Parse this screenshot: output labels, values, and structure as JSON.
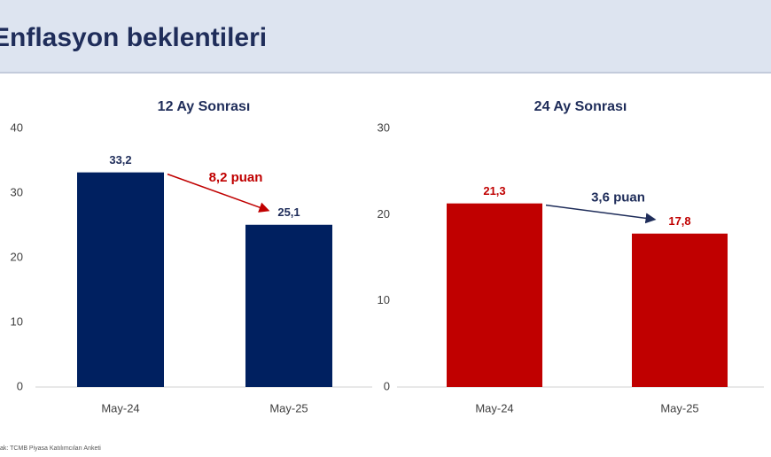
{
  "title": "Enflasyon beklentileri",
  "source": "ak: TCMB Piyasa Katılımcıları Anketi",
  "chart_data": [
    {
      "type": "bar",
      "title": "12 Ay Sonrası",
      "categories": [
        "May-24",
        "May-25"
      ],
      "values": [
        33.2,
        25.1
      ],
      "value_labels": [
        "33,2",
        "25,1"
      ],
      "color": "#002060",
      "label_color": "#1f2d5a",
      "ylim": [
        0,
        40
      ],
      "yticks": [
        0,
        10,
        20,
        30,
        40
      ],
      "grid": false,
      "annotation": "8,2 puan",
      "annotation_color": "#c00000"
    },
    {
      "type": "bar",
      "title": "24 Ay Sonrası",
      "categories": [
        "May-24",
        "May-25"
      ],
      "values": [
        21.3,
        17.8
      ],
      "value_labels": [
        "21,3",
        "17,8"
      ],
      "color": "#c00000",
      "label_color": "#c00000",
      "ylim": [
        0,
        30
      ],
      "yticks": [
        0,
        10,
        20,
        30
      ],
      "grid": false,
      "annotation": "3,6 puan",
      "annotation_color": "#1f2d5a"
    }
  ]
}
